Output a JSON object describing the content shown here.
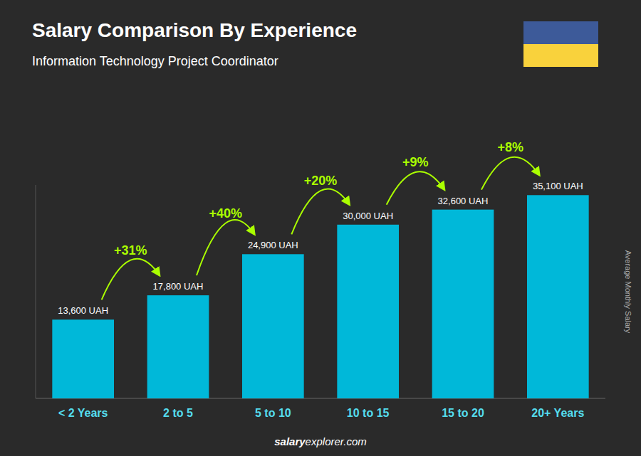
{
  "chart_data": {
    "type": "bar",
    "title": "Salary Comparison By Experience",
    "subtitle": "Information Technology Project Coordinator",
    "ylabel": "Average Monthly Salary",
    "categories": [
      "< 2 Years",
      "2 to 5",
      "5 to 10",
      "10 to 15",
      "15 to 20",
      "20+ Years"
    ],
    "values": [
      13600,
      17800,
      24900,
      30000,
      32600,
      35100
    ],
    "value_labels": [
      "13,600 UAH",
      "17,800 UAH",
      "24,900 UAH",
      "30,000 UAH",
      "32,600 UAH",
      "35,100 UAH"
    ],
    "data_labels": true,
    "color": "#00b8d9",
    "ylim": [
      0,
      36855
    ],
    "tick_labels": "x",
    "grid": false,
    "annotations": [
      "+31%",
      "+40%",
      "+20%",
      "+9%",
      "+8%",
      "salary",
      "explorer.com"
    ]
  }
}
